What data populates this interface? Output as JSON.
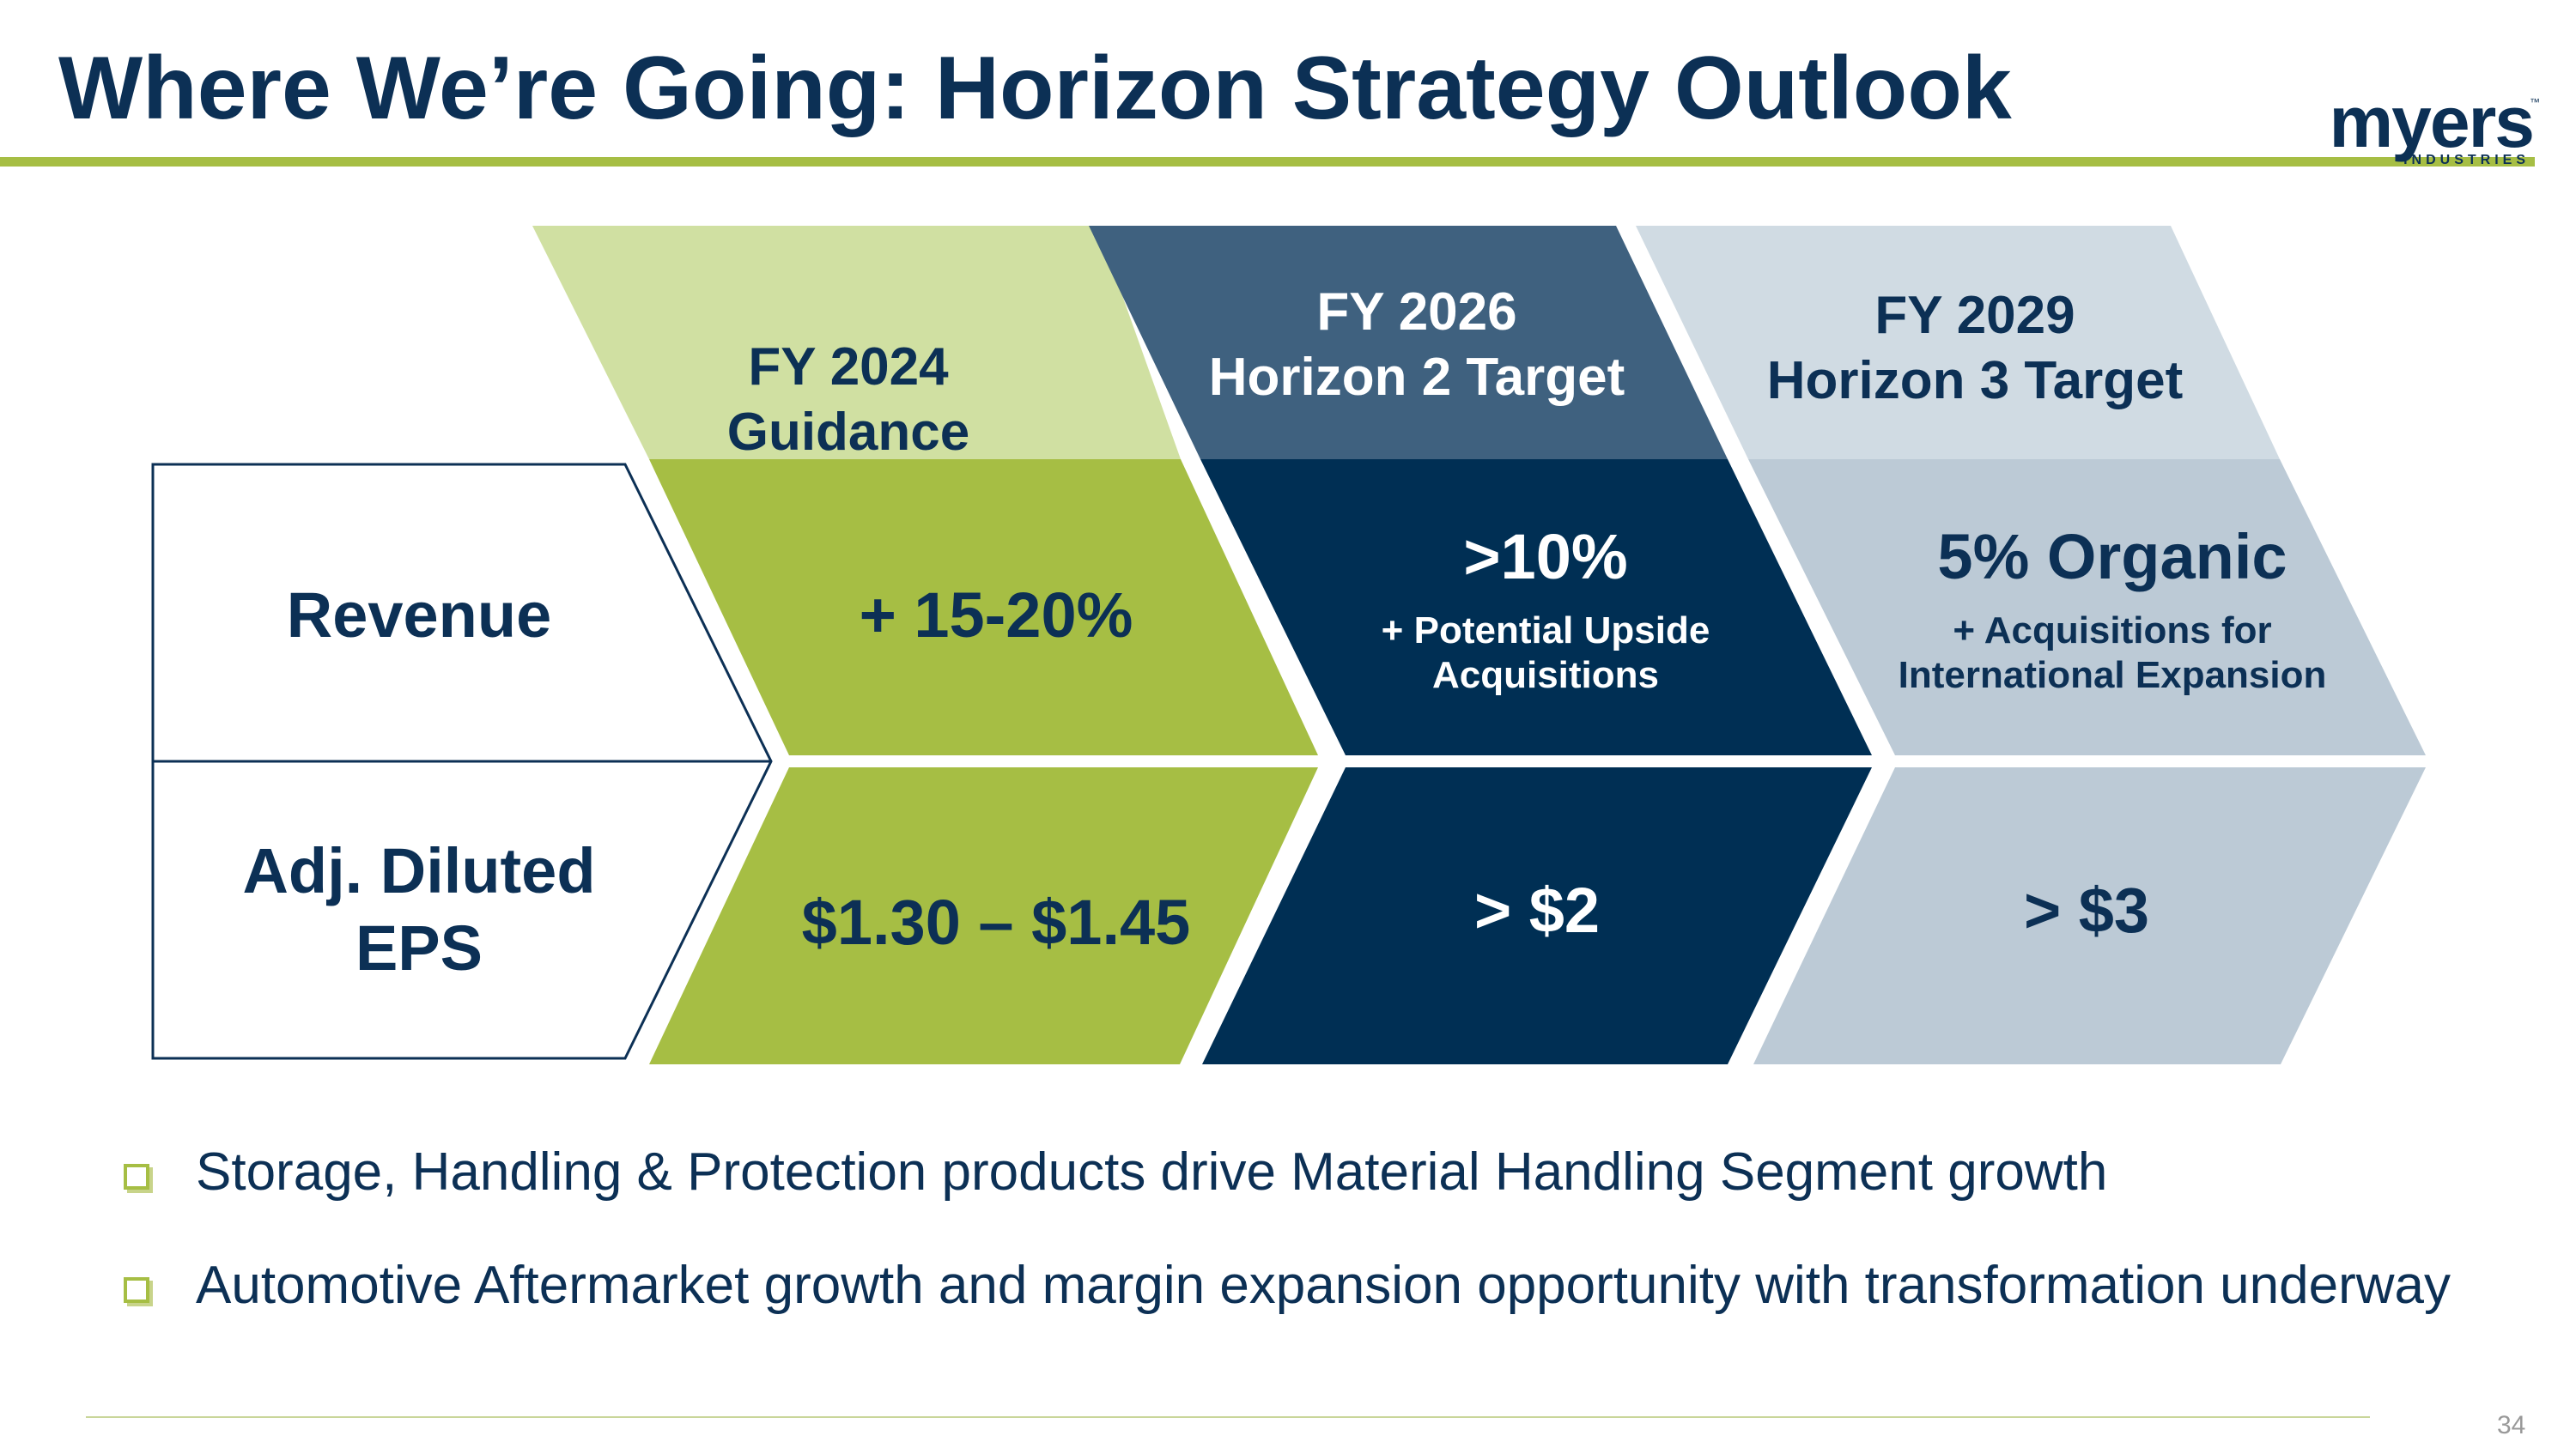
{
  "slide": {
    "title": "Where We’re Going: Horizon Strategy Outlook",
    "page_number": "34"
  },
  "logo": {
    "word": "myers",
    "sub": "INDUSTRIES",
    "tm": "™"
  },
  "rows": {
    "revenue": "Revenue",
    "eps_line1": "Adj. Diluted",
    "eps_line2": "EPS"
  },
  "columns": [
    {
      "header_line1": "FY 2024",
      "header_line2": "Guidance",
      "revenue_main": "+ 15-20%",
      "eps": "$1.30 – $1.45"
    },
    {
      "header_line1": "FY 2026",
      "header_line2": "Horizon 2 Target",
      "revenue_main": ">10%",
      "revenue_sub1": "+ Potential Upside",
      "revenue_sub2": "Acquisitions",
      "eps": "> $2"
    },
    {
      "header_line1": "FY 2029",
      "header_line2": "Horizon 3 Target",
      "revenue_main": "5% Organic",
      "revenue_sub1": "+ Acquisitions for",
      "revenue_sub2": "International Expansion",
      "eps": "> $3"
    }
  ],
  "bullets": [
    "Storage, Handling & Protection products drive Material Handling Segment growth",
    "Automotive Aftermarket growth and margin expansion opportunity with transformation underway"
  ],
  "colors": {
    "navy": "#0c3055",
    "green": "#a6be44",
    "light_green": "#d0e0a2",
    "slate_blue": "#3f617f",
    "dark_navy": "#002f54",
    "light_gray_blue": "#d0dbe3",
    "gray_blue": "#bccad6"
  }
}
